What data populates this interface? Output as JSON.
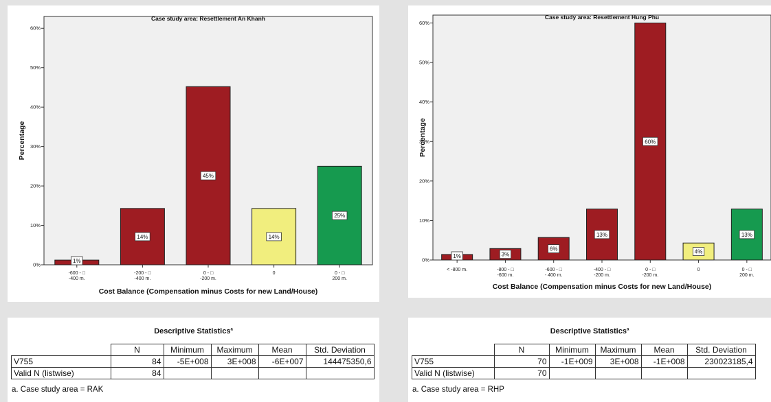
{
  "charts": [
    {
      "id": "left",
      "title": "Case study area: Resettlement An Khanh",
      "xlabel": "Cost Balance (Compensation minus Costs for new Land/House)",
      "ylabel": "Percentage",
      "yticks": [
        "0%",
        "10%",
        "20%",
        "30%",
        "40%",
        "50%",
        "60%"
      ]
    },
    {
      "id": "right",
      "title": "Case study area: Resettlement Hung Phu",
      "xlabel": "Cost Balance (Compensation minus Costs for new Land/House)",
      "ylabel": "Percentage",
      "yticks": [
        "0%",
        "10%",
        "20%",
        "30%",
        "40%",
        "50%",
        "60%"
      ]
    }
  ],
  "chart_data": [
    {
      "type": "bar",
      "title": "Case study area: Resettlement An Khanh",
      "xlabel": "Cost Balance (Compensation minus Costs for new Land/House)",
      "ylabel": "Percentage",
      "ylim": [
        0,
        63
      ],
      "grid": false,
      "categories": [
        [
          "-600 - □",
          "-400 m."
        ],
        [
          "-200 - □",
          "-400 m."
        ],
        [
          "0 - □",
          "-200 m."
        ],
        [
          "0"
        ],
        [
          "0 - □",
          "200 m."
        ]
      ],
      "values": [
        1.2,
        14.3,
        45.2,
        14.3,
        25
      ],
      "data_labels": [
        "1%",
        "14%",
        "45%",
        "14%",
        "25%"
      ],
      "colors": [
        "#9e1c22",
        "#9e1c22",
        "#9e1c22",
        "#f1ee7e",
        "#169a4f"
      ]
    },
    {
      "type": "bar",
      "title": "Case study area: Resettlement Hung Phu",
      "xlabel": "Cost Balance (Compensation minus Costs for new Land/House)",
      "ylabel": "Percentage",
      "ylim": [
        0,
        62
      ],
      "grid": false,
      "categories": [
        [
          "< -800 m."
        ],
        [
          "-800 - □",
          "-600 m."
        ],
        [
          "-600 - □",
          "- 400 m."
        ],
        [
          "-400 - □",
          "-200 m."
        ],
        [
          "0 - □",
          "-200 m."
        ],
        [
          "0"
        ],
        [
          "0 - □",
          "200 m."
        ]
      ],
      "values": [
        1.4,
        2.9,
        5.7,
        12.9,
        60,
        4.3,
        12.9
      ],
      "data_labels": [
        "1%",
        "3%",
        "6%",
        "13%",
        "60%",
        "4%",
        "13%"
      ],
      "colors": [
        "#9e1c22",
        "#9e1c22",
        "#9e1c22",
        "#9e1c22",
        "#9e1c22",
        "#f1ee7e",
        "#169a4f"
      ]
    }
  ],
  "stats": [
    {
      "id": "left",
      "title": "Descriptive Statistics",
      "title_marker": "a",
      "headers": [
        "",
        "N",
        "Minimum",
        "Maximum",
        "Mean",
        "Std. Deviation"
      ],
      "rows": [
        [
          "V755",
          "84",
          "-5E+008",
          "3E+008",
          "-6E+007",
          "144475350,6"
        ],
        [
          "Valid N (listwise)",
          "84",
          "",
          "",
          "",
          ""
        ]
      ],
      "footnote": "a. Case study area = RAK"
    },
    {
      "id": "right",
      "title": "Descriptive Statistics",
      "title_marker": "a",
      "headers": [
        "",
        "N",
        "Minimum",
        "Maximum",
        "Mean",
        "Std. Deviation"
      ],
      "rows": [
        [
          "V755",
          "70",
          "-1E+009",
          "3E+008",
          "-1E+008",
          "230023185,4"
        ],
        [
          "Valid N (listwise)",
          "70",
          "",
          "",
          "",
          ""
        ]
      ],
      "footnote": "a. Case study area = RHP"
    }
  ]
}
